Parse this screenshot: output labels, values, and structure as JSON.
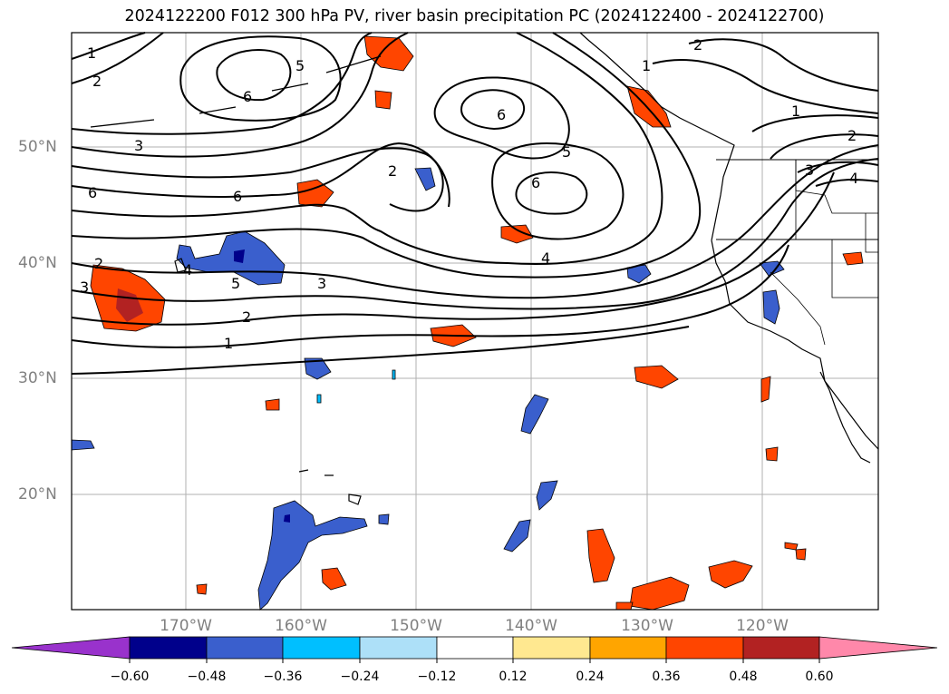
{
  "title": "2024122200 F012 300 hPa PV, river basin precipitation PC (2024122400 - 2024122700)",
  "map": {
    "lat_labels": [
      "50°N",
      "40°N",
      "30°N",
      "20°N"
    ],
    "lon_labels": [
      "170°W",
      "160°W",
      "150°W",
      "140°W",
      "130°W",
      "120°W"
    ],
    "pv_contour_labels": [
      "1",
      "2",
      "3",
      "6",
      "6",
      "6",
      "5",
      "4",
      "2",
      "6",
      "5",
      "4",
      "3",
      "2",
      "1",
      "1",
      "2",
      "1",
      "2",
      "4",
      "3",
      "2",
      "5",
      "3",
      "6"
    ]
  },
  "colorbar": {
    "tick_labels": [
      "−0.60",
      "−0.48",
      "−0.36",
      "−0.24",
      "−0.12",
      "0.12",
      "0.24",
      "0.36",
      "0.48",
      "0.60"
    ],
    "colors": [
      "#9932CC",
      "#00008B",
      "#3A5FCD",
      "#00BFFF",
      "#ADE0F8",
      "#FFFFFF",
      "#FFE890",
      "#FFA500",
      "#FF4500",
      "#B22222",
      "#FF88AA"
    ]
  },
  "colors": {
    "grid": "#b0b0b0",
    "contour": "#000000",
    "coast": "#000000",
    "label_gray": "#808080"
  }
}
